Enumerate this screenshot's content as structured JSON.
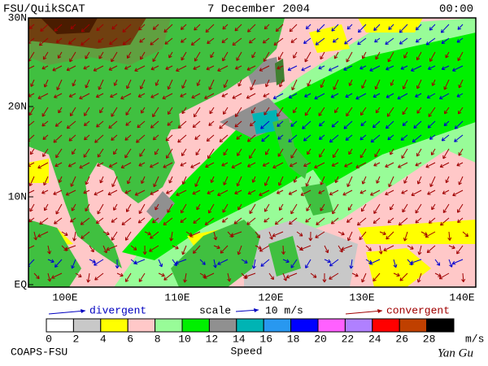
{
  "header": {
    "source": "FSU/QuikSCAT",
    "date": "7 December 2004",
    "time": "00:00"
  },
  "map": {
    "lat_labels": [
      "30N",
      "20N",
      "10N",
      "EQ"
    ],
    "lon_labels": [
      "100E",
      "110E",
      "120E",
      "130E",
      "140E"
    ]
  },
  "legend": {
    "divergent": "divergent",
    "scale": "scale",
    "scale_value": "10 m/s",
    "convergent": "convergent",
    "speed_labels": [
      "0",
      "2",
      "4",
      "6",
      "8",
      "10",
      "12",
      "14",
      "16",
      "18",
      "20",
      "22",
      "24",
      "26",
      "28"
    ],
    "unit": "m/s",
    "speed_title": "Speed"
  },
  "footer": {
    "credit": "COAPS-FSU",
    "author": "Yan Gu"
  }
}
